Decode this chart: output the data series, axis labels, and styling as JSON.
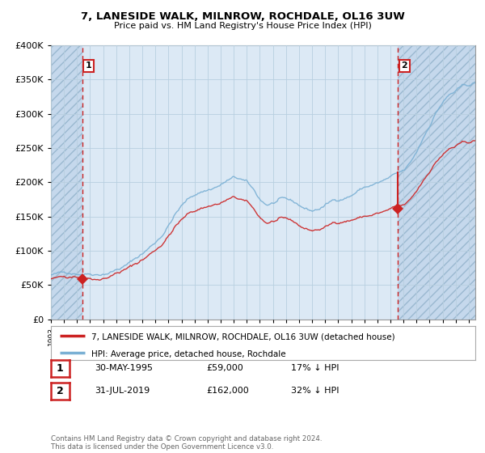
{
  "title": "7, LANESIDE WALK, MILNROW, ROCHDALE, OL16 3UW",
  "subtitle": "Price paid vs. HM Land Registry's House Price Index (HPI)",
  "background_color": "#ffffff",
  "plot_bg_color": "#dce9f5",
  "hatch_bg_color": "#c5d8ec",
  "grid_color": "#b8cfe0",
  "sale1_date_num": 1995.41,
  "sale1_price": 59000,
  "sale2_date_num": 2019.582,
  "sale2_price": 162000,
  "xmin": 1993.0,
  "xmax": 2025.5,
  "ymin": 0,
  "ymax": 400000,
  "hpi_color": "#7ab0d4",
  "price_color": "#cc2222",
  "dashed_line_color": "#cc2222",
  "label1": "7, LANESIDE WALK, MILNROW, ROCHDALE, OL16 3UW (detached house)",
  "label2": "HPI: Average price, detached house, Rochdale",
  "annotation1_label": "1",
  "annotation2_label": "2",
  "table_row1": [
    "1",
    "30-MAY-1995",
    "£59,000",
    "17% ↓ HPI"
  ],
  "table_row2": [
    "2",
    "31-JUL-2019",
    "£162,000",
    "32% ↓ HPI"
  ],
  "footer": "Contains HM Land Registry data © Crown copyright and database right 2024.\nThis data is licensed under the Open Government Licence v3.0."
}
